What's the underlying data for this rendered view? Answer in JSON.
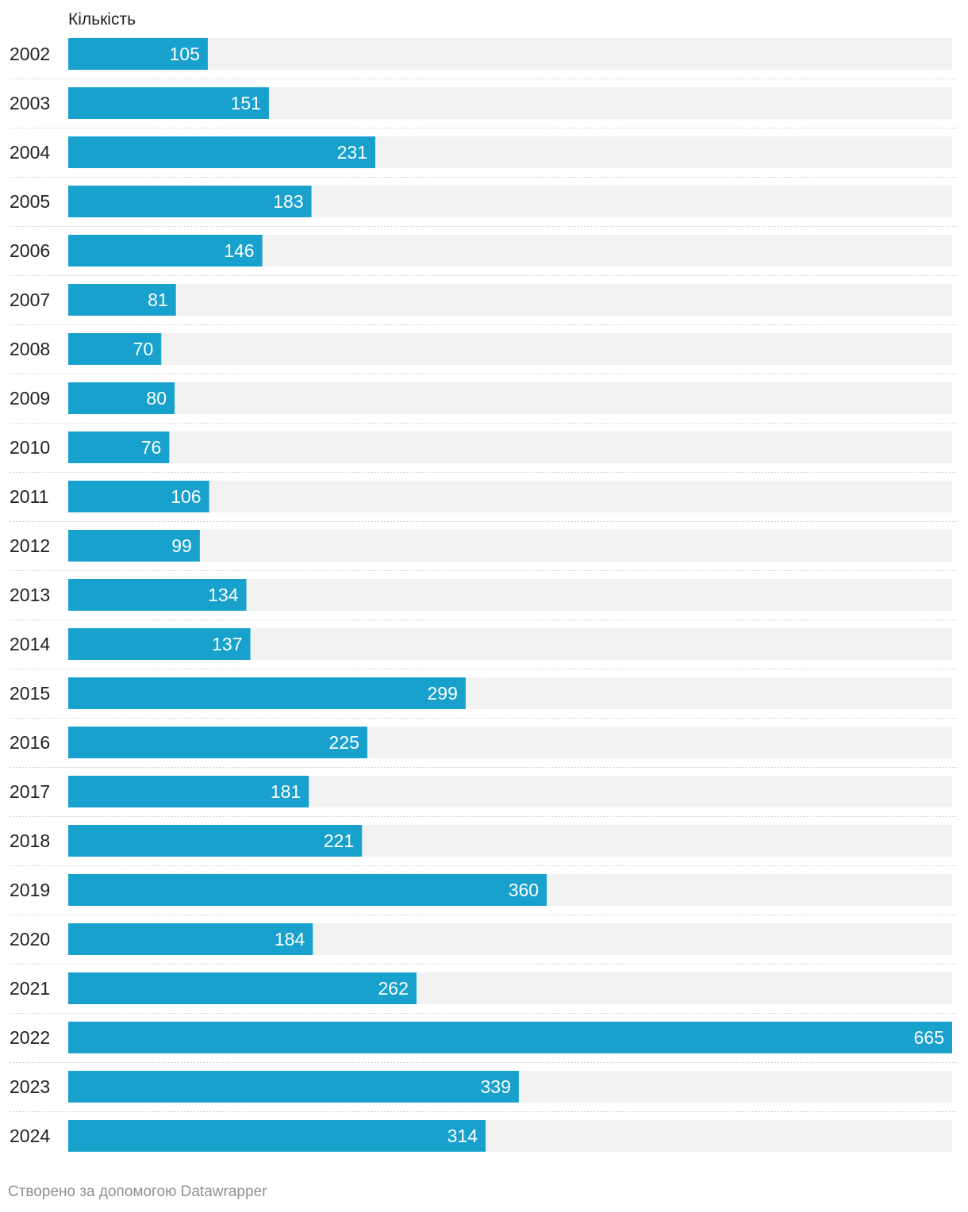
{
  "chart_data": {
    "type": "bar",
    "orientation": "horizontal",
    "column_header": "Кількість",
    "categories": [
      "2002",
      "2003",
      "2004",
      "2005",
      "2006",
      "2007",
      "2008",
      "2009",
      "2010",
      "2011",
      "2012",
      "2013",
      "2014",
      "2015",
      "2016",
      "2017",
      "2018",
      "2019",
      "2020",
      "2021",
      "2022",
      "2023",
      "2024"
    ],
    "values": [
      105,
      151,
      231,
      183,
      146,
      81,
      70,
      80,
      76,
      106,
      99,
      134,
      137,
      299,
      225,
      181,
      221,
      360,
      184,
      262,
      665,
      339,
      314
    ],
    "xlim": [
      0,
      665
    ],
    "bar_color": "#18a1cd",
    "track_color": "#f2f2f2",
    "data_labels": "inside-end"
  },
  "footer": {
    "credit": "Створено за допомогою Datawrapper"
  }
}
